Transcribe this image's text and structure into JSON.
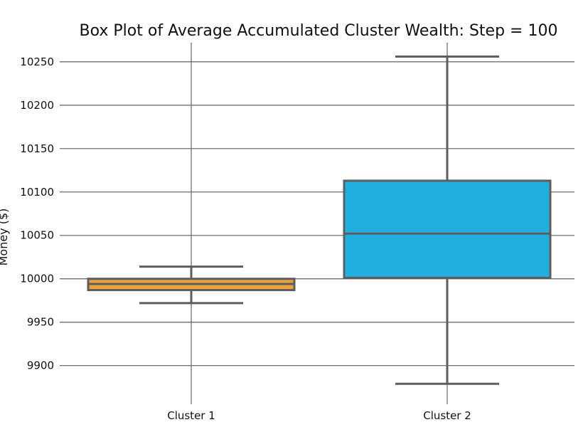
{
  "chart_data": {
    "type": "box",
    "title": "Box Plot of Average Accumulated Cluster Wealth: Step = 100",
    "ylabel": "Money ($)",
    "xlabel": "",
    "ylim": [
      9862,
      10272
    ],
    "yticks": [
      9900,
      9950,
      10000,
      10050,
      10100,
      10150,
      10200,
      10250
    ],
    "grid": true,
    "categories": [
      "Cluster 1",
      "Cluster 2"
    ],
    "boxes": [
      {
        "name": "Cluster 1",
        "color": "#E8A33B",
        "whisker_low": 9972,
        "q1": 9987,
        "median": 9994,
        "q3": 10000,
        "whisker_high": 10014
      },
      {
        "name": "Cluster 2",
        "color": "#22AEDF",
        "whisker_low": 9879,
        "q1": 10001,
        "median": 10052,
        "q3": 10113,
        "whisker_high": 10256
      }
    ]
  }
}
